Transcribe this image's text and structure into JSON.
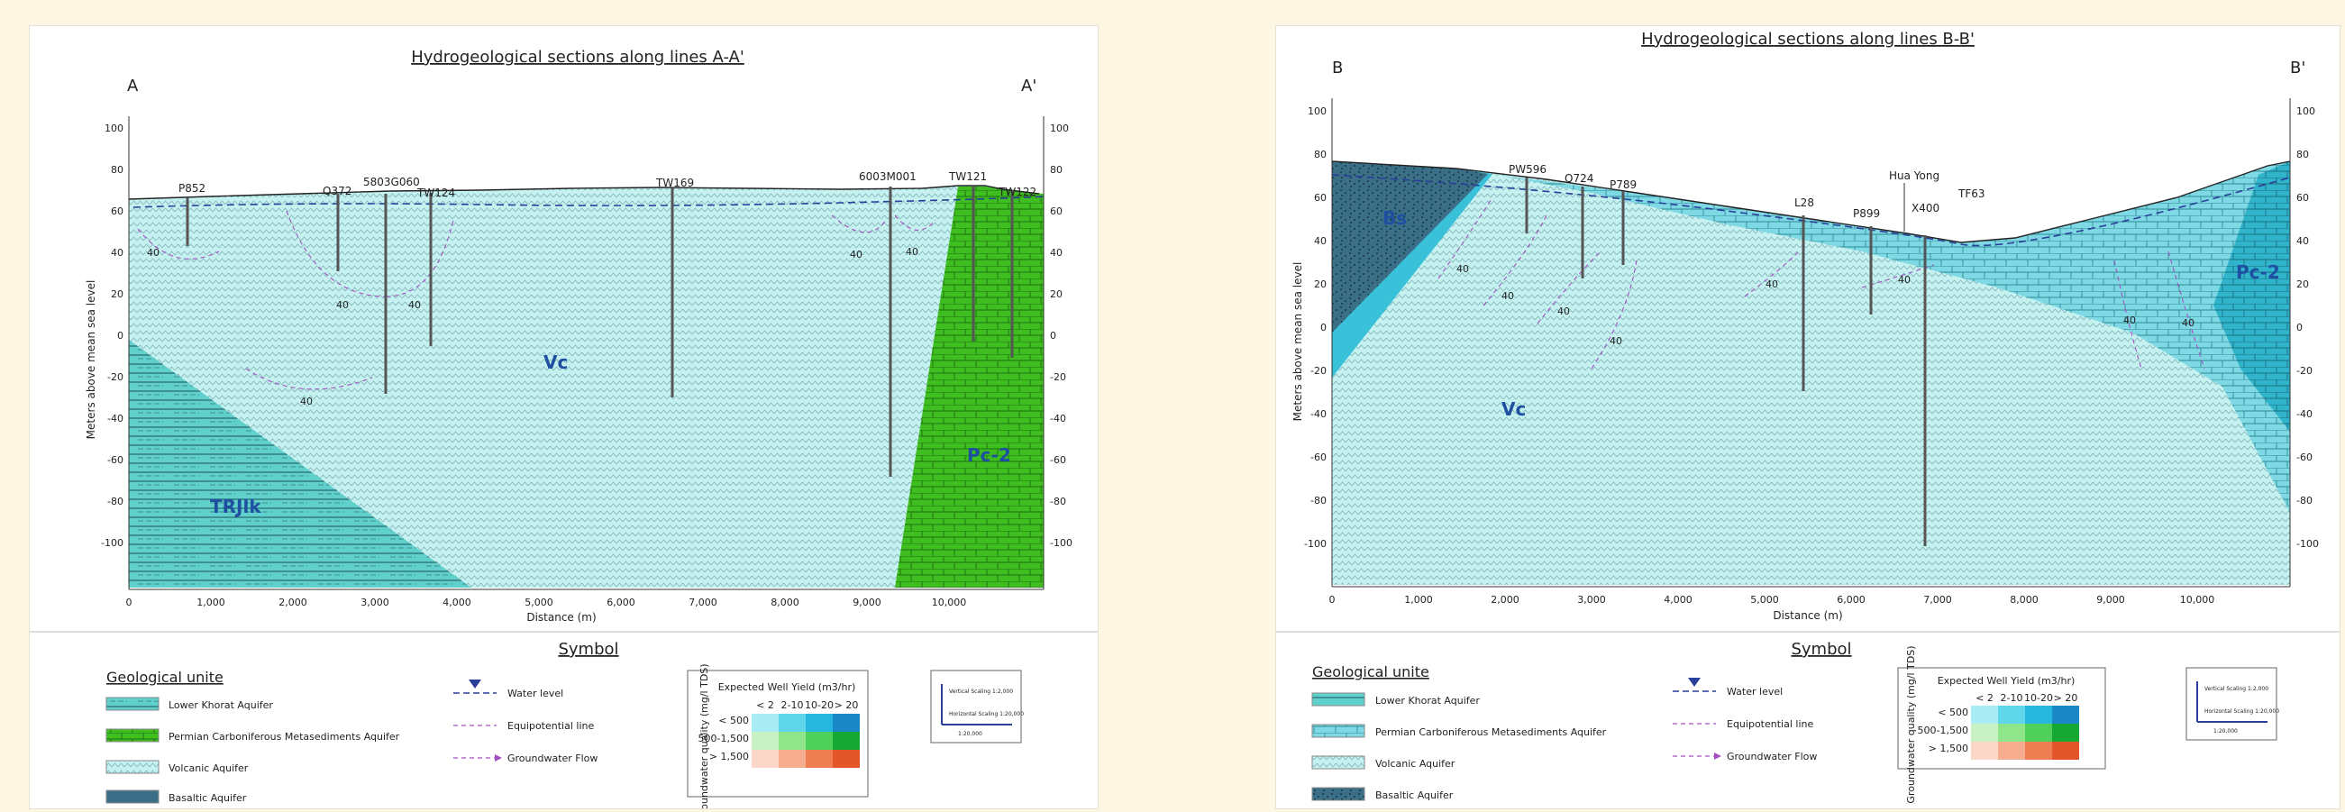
{
  "sections": [
    {
      "title": "Hydrogeological sections along lines A-A'",
      "end_left": "A",
      "end_right": "A'",
      "y_axis_label": "Meters above mean sea level",
      "x_axis_label": "Distance (m)",
      "left_ticks": [
        "100",
        "80",
        "60",
        "40",
        "20",
        "0",
        "-20",
        "-40",
        "-60",
        "-80",
        "-100"
      ],
      "right_ticks": [
        "100",
        "80",
        "60",
        "40",
        "20",
        "0",
        "-20",
        "-40",
        "-60",
        "-80",
        "-100"
      ],
      "x_ticks": [
        "0",
        "1,000",
        "2,000",
        "3,000",
        "4,000",
        "5,000",
        "6,000",
        "7,000",
        "8,000",
        "9,000",
        "10,000"
      ],
      "wells": [
        "P852",
        "Q372",
        "5803G060",
        "TW124",
        "TW169",
        "6003M001",
        "TW121",
        "TW122"
      ],
      "unit_labels": [
        "Vc",
        "TRJlk",
        "Pc-2"
      ],
      "equipotential_values": [
        "40",
        "40",
        "40",
        "40",
        "40",
        "40"
      ],
      "symbol_heading": "Symbol",
      "geo_heading": "Geological unite",
      "geo_units": [
        {
          "code": "TRJlk",
          "name": "Lower Khorat Aquifer"
        },
        {
          "code": "Pc",
          "name": "Permian Carboniferous Metasediments Aquifer"
        },
        {
          "code": "Vc",
          "name": "Volcanic Aquifer"
        },
        {
          "code": "Bs",
          "name": "Basaltic Aquifer"
        }
      ],
      "line_symbols": [
        "Water level",
        "Equipotential line",
        "Groundwater Flow"
      ],
      "yield_table": {
        "title": "Expected Well Yield (m3/hr)",
        "side_label": "Groundwater quality (mg/l TDS)",
        "columns": [
          "< 2",
          "2-10",
          "10-20",
          "> 20"
        ],
        "rows": [
          "< 500",
          "500-1,500",
          "> 1,500"
        ]
      },
      "scale_box": [
        "Vertical Scaling 1:2,000",
        "Horizontal Scaling 1:20,000",
        "1:20,000"
      ]
    },
    {
      "title": "Hydrogeological sections along lines B-B'",
      "end_left": "B",
      "end_right": "B'",
      "y_axis_label": "Meters above mean sea level",
      "x_axis_label": "Distance (m)",
      "left_ticks": [
        "100",
        "80",
        "60",
        "40",
        "20",
        "0",
        "-20",
        "-40",
        "-60",
        "-80",
        "-100"
      ],
      "right_ticks": [
        "100",
        "80",
        "60",
        "40",
        "20",
        "0",
        "-20",
        "-40",
        "-60",
        "-80",
        "-100"
      ],
      "x_ticks": [
        "0",
        "1,000",
        "2,000",
        "3,000",
        "4,000",
        "5,000",
        "6,000",
        "7,000",
        "8,000",
        "9,000",
        "10,000"
      ],
      "wells": [
        "PW596",
        "Q724",
        "P789",
        "L28",
        "P899",
        "X400",
        "TF63"
      ],
      "village": "Hua Yong",
      "unit_labels": [
        "Bs",
        "Vc",
        "Pc-2"
      ],
      "equipotential_values": [
        "40",
        "40",
        "40",
        "40",
        "40",
        "40",
        "40",
        "40"
      ],
      "symbol_heading": "Symbol",
      "geo_heading": "Geological unite",
      "geo_units": [
        {
          "code": "TRJlk",
          "name": "Lower Khorat Aquifer"
        },
        {
          "code": "Pc",
          "name": "Permian Carboniferous Metasediments Aquifer"
        },
        {
          "code": "Vc",
          "name": "Volcanic Aquifer"
        },
        {
          "code": "Bs",
          "name": "Basaltic Aquifer"
        }
      ],
      "line_symbols": [
        "Water level",
        "Equipotential line",
        "Groundwater Flow"
      ],
      "yield_table": {
        "title": "Expected Well Yield (m3/hr)",
        "side_label": "Groundwater quality (mg/l TDS)",
        "columns": [
          "< 2",
          "2-10",
          "10-20",
          "> 20"
        ],
        "rows": [
          "< 500",
          "500-1,500",
          "> 1,500"
        ]
      },
      "scale_box": [
        "Vertical Scaling 1:2,000",
        "Horizontal Scaling 1:20,000",
        "1:20,000"
      ]
    }
  ],
  "colors": {
    "volcanic": "#c6f1f1",
    "lower_khorat": "#5fd0cb",
    "permian": "#3fbf1f",
    "basalt": "#3b6f87",
    "blue_zone": "#39c1da",
    "water_level": "#2a3f9a",
    "equipotential": "#a24fc2",
    "yield_cells": [
      [
        "#a9ecf5",
        "#5fd6ea",
        "#27b6dd",
        "#1a88c6"
      ],
      [
        "#c8f2c4",
        "#8fe58a",
        "#4fd05a",
        "#15a832"
      ],
      [
        "#fbd7c9",
        "#f6ad8f",
        "#ef7d52",
        "#e2562a"
      ]
    ]
  }
}
